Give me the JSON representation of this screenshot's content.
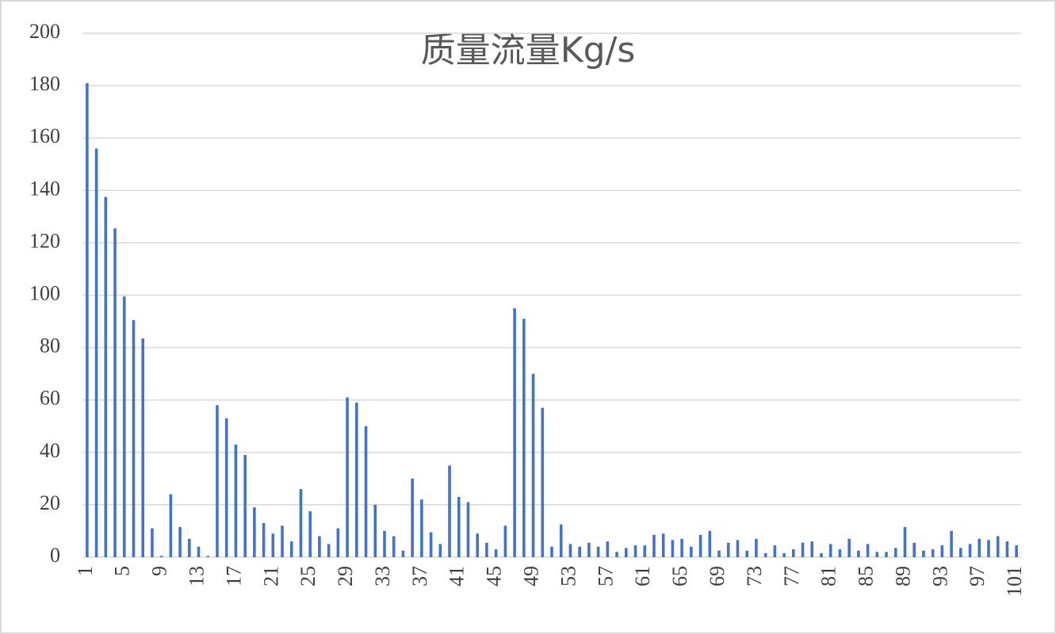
{
  "chart_data": {
    "type": "bar",
    "title": "质量流量Kg/s",
    "categories": [
      "1",
      null,
      null,
      null,
      "5",
      null,
      null,
      null,
      "9",
      null,
      null,
      null,
      "13",
      null,
      null,
      null,
      "17",
      null,
      null,
      null,
      "21",
      null,
      null,
      null,
      "25",
      null,
      null,
      null,
      "29",
      null,
      null,
      null,
      "33",
      null,
      null,
      null,
      "37",
      null,
      null,
      null,
      "41",
      null,
      null,
      null,
      "45",
      null,
      null,
      null,
      "49",
      null,
      null,
      null,
      "53",
      null,
      null,
      null,
      "57",
      null,
      null,
      null,
      "61",
      null,
      null,
      null,
      "65",
      null,
      null,
      null,
      "69",
      null,
      null,
      null,
      "73",
      null,
      null,
      null,
      "77",
      null,
      null,
      null,
      "81",
      null,
      null,
      null,
      "85",
      null,
      null,
      null,
      "89",
      null,
      null,
      null,
      "93",
      null,
      null,
      null,
      "97",
      null,
      null,
      null,
      "101"
    ],
    "values": [
      181,
      156,
      137.5,
      125.5,
      99.5,
      90.5,
      83.5,
      11,
      0.5,
      24,
      11.5,
      7,
      4,
      0.5,
      58,
      53,
      43,
      39,
      19,
      13,
      9,
      12,
      6,
      26,
      17.5,
      8,
      5,
      11,
      61,
      59,
      50,
      20,
      10,
      8,
      2.5,
      30,
      22,
      9.5,
      5,
      35,
      23,
      21,
      9,
      5.5,
      3,
      12,
      95,
      91,
      70,
      57,
      4,
      12.5,
      5,
      4,
      5.5,
      4,
      6,
      2,
      3.5,
      4.5,
      4.5,
      8.5,
      9,
      6.5,
      7,
      4,
      8.5,
      10,
      2.5,
      5.5,
      6.5,
      2.5,
      7,
      1.5,
      4.5,
      1.5,
      3,
      5.5,
      6,
      1.5,
      5,
      3,
      7,
      2.5,
      5,
      2,
      2,
      3.5,
      11.5,
      5.5,
      2.5,
      3,
      4.5,
      10,
      3.5,
      5,
      7,
      6.5,
      8,
      6,
      4.5
    ],
    "color": "#4472c4",
    "ylim": [
      0,
      200
    ],
    "yticks": [
      0,
      20,
      40,
      60,
      80,
      100,
      120,
      140,
      160,
      180,
      200
    ],
    "grid": true
  }
}
